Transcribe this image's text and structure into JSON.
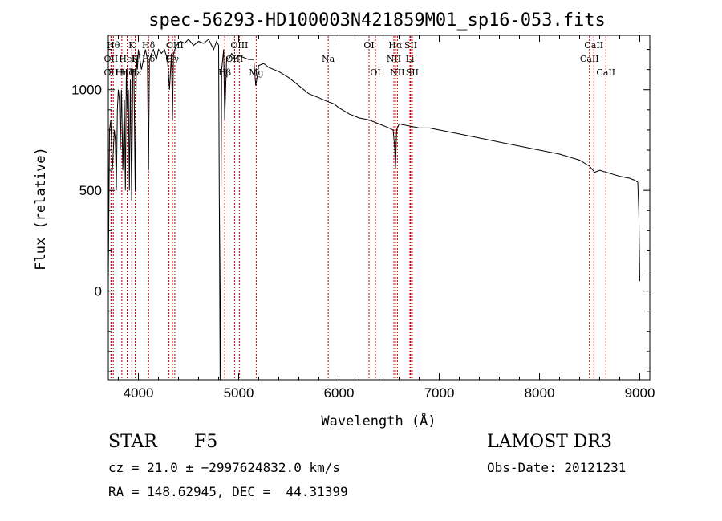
{
  "chart_data": {
    "type": "line",
    "title": "spec-56293-HD100003N421859M01_sp16-053.fits",
    "xlabel": "Wavelength (Å)",
    "ylabel": "Flux (relative)",
    "xlim": [
      3700,
      9100
    ],
    "ylim": [
      -440,
      1270
    ],
    "xticks": [
      4000,
      5000,
      6000,
      7000,
      8000,
      9000
    ],
    "yticks": [
      0,
      500,
      1000
    ],
    "series": [
      {
        "name": "spectrum",
        "x": [
          3700,
          3712,
          3725,
          3740,
          3750,
          3760,
          3770,
          3780,
          3790,
          3800,
          3810,
          3820,
          3830,
          3835,
          3845,
          3860,
          3870,
          3880,
          3890,
          3900,
          3910,
          3920,
          3933,
          3945,
          3955,
          3968,
          3980,
          3990,
          4000,
          4015,
          4030,
          4050,
          4070,
          4090,
          4101,
          4110,
          4130,
          4150,
          4180,
          4200,
          4230,
          4260,
          4290,
          4310,
          4330,
          4340,
          4350,
          4380,
          4420,
          4460,
          4500,
          4550,
          4600,
          4650,
          4700,
          4750,
          4780,
          4800,
          4815,
          4830,
          4850,
          4861,
          4880,
          4900,
          4930,
          4960,
          5000,
          5050,
          5100,
          5150,
          5170,
          5183,
          5200,
          5250,
          5300,
          5400,
          5500,
          5600,
          5700,
          5800,
          5893,
          5950,
          6000,
          6100,
          6200,
          6300,
          6400,
          6500,
          6540,
          6555,
          6563,
          6575,
          6600,
          6700,
          6800,
          6900,
          7000,
          7200,
          7400,
          7600,
          7800,
          8000,
          8200,
          8400,
          8500,
          8550,
          8600,
          8700,
          8800,
          8900,
          8950,
          8980,
          8990,
          9000
        ],
        "y": [
          50,
          800,
          850,
          600,
          700,
          800,
          750,
          500,
          900,
          1000,
          950,
          700,
          1000,
          900,
          600,
          950,
          500,
          1100,
          900,
          1000,
          500,
          1050,
          450,
          1100,
          1100,
          500,
          1150,
          1100,
          1200,
          1150,
          1100,
          1150,
          1200,
          1150,
          600,
          1150,
          1180,
          1200,
          1150,
          1200,
          1180,
          1200,
          1150,
          1000,
          1180,
          850,
          1180,
          1220,
          1240,
          1230,
          1250,
          1220,
          1240,
          1230,
          1250,
          1200,
          1240,
          1220,
          -440,
          1100,
          1200,
          850,
          1160,
          1150,
          1180,
          1150,
          1170,
          1160,
          1150,
          1150,
          1020,
          1060,
          1120,
          1130,
          1110,
          1090,
          1060,
          1020,
          980,
          960,
          940,
          930,
          910,
          880,
          860,
          850,
          830,
          810,
          800,
          720,
          610,
          800,
          830,
          820,
          810,
          810,
          800,
          780,
          760,
          740,
          720,
          700,
          680,
          650,
          620,
          590,
          600,
          585,
          570,
          560,
          550,
          540,
          400,
          50
        ]
      }
    ],
    "line_markers": [
      {
        "label": "OII",
        "x": 3727,
        "row": 2
      },
      {
        "label": "OII",
        "x": 3727,
        "row": 1
      },
      {
        "label": "Hθ",
        "x": 3750,
        "row": 0
      },
      {
        "label": "Hη",
        "x": 3835,
        "row": 2
      },
      {
        "label": "Hζ",
        "x": 3889,
        "row": 2
      },
      {
        "label": "K",
        "x": 3934,
        "row": 0
      },
      {
        "label": "HeI",
        "x": 3889,
        "row": 1
      },
      {
        "label": "H",
        "x": 3968,
        "row": 1
      },
      {
        "label": "Hε",
        "x": 3970,
        "row": 2
      },
      {
        "label": "Hδ",
        "x": 4101,
        "row": 0
      },
      {
        "label": "Hδ",
        "x": 4101,
        "row": 1
      },
      {
        "label": "G",
        "x": 4305,
        "row": 1
      },
      {
        "label": "Hγ",
        "x": 4340,
        "row": 1
      },
      {
        "label": "OIII",
        "x": 4363,
        "row": 0
      },
      {
        "label": "Hβ",
        "x": 4861,
        "row": 2
      },
      {
        "label": "OIII",
        "x": 4959,
        "row": 1
      },
      {
        "label": "OIII",
        "x": 5007,
        "row": 0
      },
      {
        "label": "Mg",
        "x": 5175,
        "row": 2
      },
      {
        "label": "Na",
        "x": 5893,
        "row": 1
      },
      {
        "label": "OI",
        "x": 6300,
        "row": 0
      },
      {
        "label": "OI",
        "x": 6364,
        "row": 2
      },
      {
        "label": "NII",
        "x": 6548,
        "row": 1
      },
      {
        "label": "Hα",
        "x": 6563,
        "row": 0
      },
      {
        "label": "NII",
        "x": 6583,
        "row": 2
      },
      {
        "label": "Li",
        "x": 6708,
        "row": 1
      },
      {
        "label": "SII",
        "x": 6716,
        "row": 0
      },
      {
        "label": "SII",
        "x": 6731,
        "row": 2
      },
      {
        "label": "CaII",
        "x": 8498,
        "row": 1
      },
      {
        "label": "CaII",
        "x": 8542,
        "row": 0
      },
      {
        "label": "CaII",
        "x": 8662,
        "row": 2
      }
    ]
  },
  "info": {
    "object_class": "STAR",
    "subclass": "F5",
    "survey": "LAMOST DR3",
    "cz_line": "cz = 21.0 ± −2997624832.0 km/s",
    "obs_date": "Obs-Date: 20121231",
    "radec_line": "RA = 148.62945, DEC =  44.31399"
  },
  "colors": {
    "spectrum": "#000000",
    "marker_line": "#c00000",
    "background": "#ffffff"
  }
}
